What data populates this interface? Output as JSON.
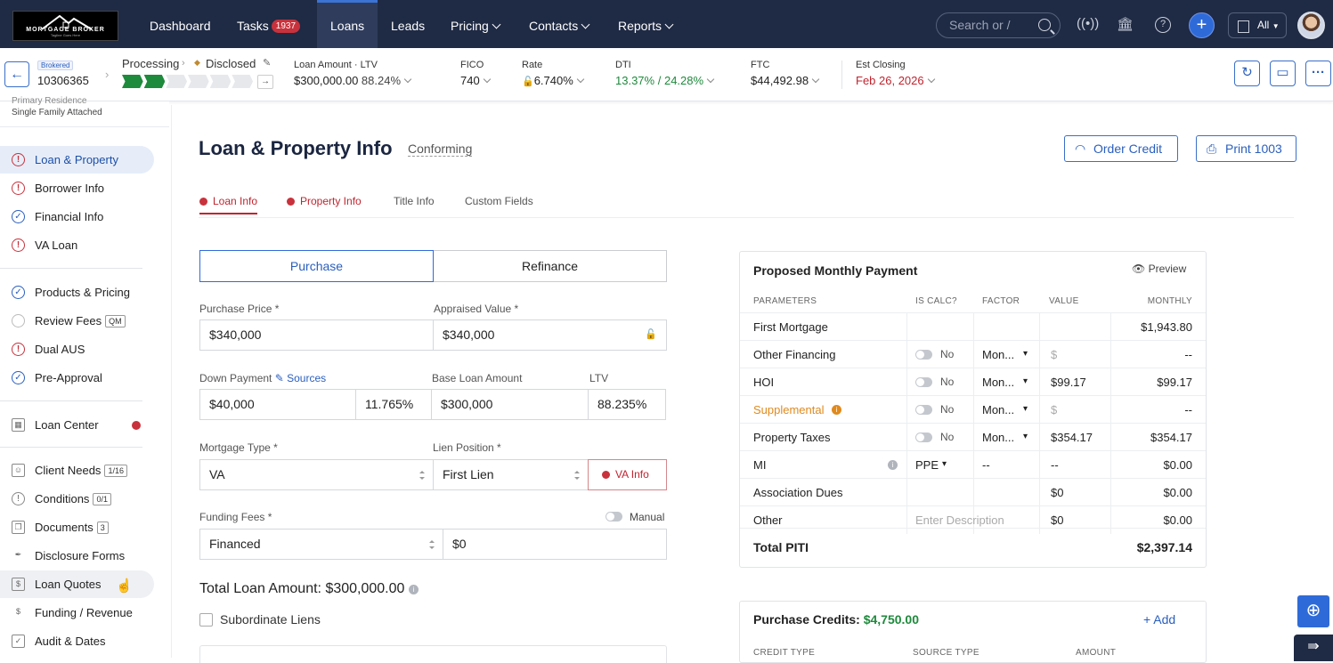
{
  "nav": {
    "logo_text": "MORTGAGE BROKER",
    "logo_sub": "Tagline Goes Here",
    "items": [
      "Dashboard",
      "Tasks",
      "Loans",
      "Leads",
      "Pricing",
      "Contacts",
      "Reports"
    ],
    "tasks_count": "1937",
    "search_placeholder": "Search or /",
    "all_label": "All"
  },
  "loanbar": {
    "brokered": "Brokered",
    "loan_number": "10306365",
    "status_label": "Processing",
    "status_label2": "Disclosed",
    "loan_amount_label": "Loan Amount · LTV",
    "loan_amount": "$300,000.00",
    "ltv": "88.24%",
    "fico_label": "FICO",
    "fico": "740",
    "rate_label": "Rate",
    "rate": "6.740%",
    "dti_label": "DTI",
    "dti1": "13.37%",
    "dti_sep": "/",
    "dti2": "24.28%",
    "ftc_label": "FTC",
    "ftc": "$44,492.98",
    "closing_label": "Est Closing",
    "closing": "Feb 26, 2026",
    "progress_steps": 6,
    "progress_done": 2
  },
  "sidebar": {
    "top1": "Primary Residence",
    "top2": "Single Family Attached",
    "items": [
      {
        "label": "Loan & Property"
      },
      {
        "label": "Borrower Info"
      },
      {
        "label": "Financial Info"
      },
      {
        "label": "VA Loan"
      },
      {
        "label": "Products & Pricing"
      },
      {
        "label": "Review Fees",
        "tag": "QM"
      },
      {
        "label": "Dual AUS"
      },
      {
        "label": "Pre-Approval"
      },
      {
        "label": "Loan Center"
      },
      {
        "label": "Client Needs",
        "count": "1/16"
      },
      {
        "label": "Conditions",
        "count": "0/1"
      },
      {
        "label": "Documents",
        "count": "3"
      },
      {
        "label": "Disclosure Forms"
      },
      {
        "label": "Loan Quotes"
      },
      {
        "label": "Funding / Revenue"
      },
      {
        "label": "Audit & Dates"
      }
    ]
  },
  "page": {
    "title": "Loan & Property Info",
    "subtitle": "Conforming",
    "order_credit": "Order Credit",
    "print": "Print 1003",
    "tabs": [
      "Loan Info",
      "Property Info",
      "Title Info",
      "Custom Fields"
    ]
  },
  "form": {
    "purchase": "Purchase",
    "refinance": "Refinance",
    "purchase_price_label": "Purchase Price *",
    "purchase_price": "$340,000",
    "appraised_label": "Appraised Value *",
    "appraised": "$340,000",
    "down_label": "Down Payment",
    "sources": "Sources",
    "down": "$40,000",
    "down_pct": "11.765%",
    "base_label": "Base Loan Amount",
    "base": "$300,000",
    "ltv_label": "LTV",
    "ltv": "88.235%",
    "mortgage_type_label": "Mortgage Type *",
    "mortgage_type": "VA",
    "lien_label": "Lien Position *",
    "lien": "First Lien",
    "va_info": "VA Info",
    "funding_label": "Funding Fees *",
    "manual": "Manual",
    "funding": "Financed",
    "funding_amt": "$0",
    "total_label": "Total Loan Amount:",
    "total": "$300,000.00",
    "subordinate": "Subordinate Liens"
  },
  "pmp": {
    "title": "Proposed Monthly Payment",
    "preview": "Preview",
    "headers": [
      "PARAMETERS",
      "IS CALC?",
      "FACTOR",
      "VALUE",
      "MONTHLY"
    ],
    "rows": [
      {
        "param": "First Mortgage",
        "calc": "",
        "factor": "",
        "value": "",
        "monthly": "$1,943.80"
      },
      {
        "param": "Other Financing",
        "calc": "No",
        "factor": "Mon...",
        "value": "$",
        "monthly": "--"
      },
      {
        "param": "HOI",
        "calc": "No",
        "factor": "Mon...",
        "value": "$99.17",
        "monthly": "$99.17"
      },
      {
        "param": "Supplemental",
        "calc": "No",
        "factor": "Mon...",
        "value": "$",
        "monthly": "--"
      },
      {
        "param": "Property Taxes",
        "calc": "No",
        "factor": "Mon...",
        "value": "$354.17",
        "monthly": "$354.17"
      },
      {
        "param": "MI",
        "calc": "PPE",
        "factor": "--",
        "value": "--",
        "monthly": "$0.00"
      },
      {
        "param": "Association Dues",
        "calc": "",
        "factor": "",
        "value": "$0",
        "monthly": "$0.00"
      },
      {
        "param": "Other",
        "calc": "Enter Description",
        "factor": "",
        "value": "$0",
        "monthly": "$0.00"
      }
    ],
    "total_label": "Total PITI",
    "total": "$2,397.14"
  },
  "credits": {
    "title": "Purchase Credits:",
    "amount": "$4,750.00",
    "add": "+ Add",
    "headers": [
      "CREDIT TYPE",
      "SOURCE TYPE",
      "AMOUNT"
    ]
  },
  "colors": {
    "nav": "#1f2a44",
    "accent": "#2f6bd8",
    "warn": "#c8323c",
    "green": "#1e8a3c",
    "orange": "#e08a1e"
  }
}
